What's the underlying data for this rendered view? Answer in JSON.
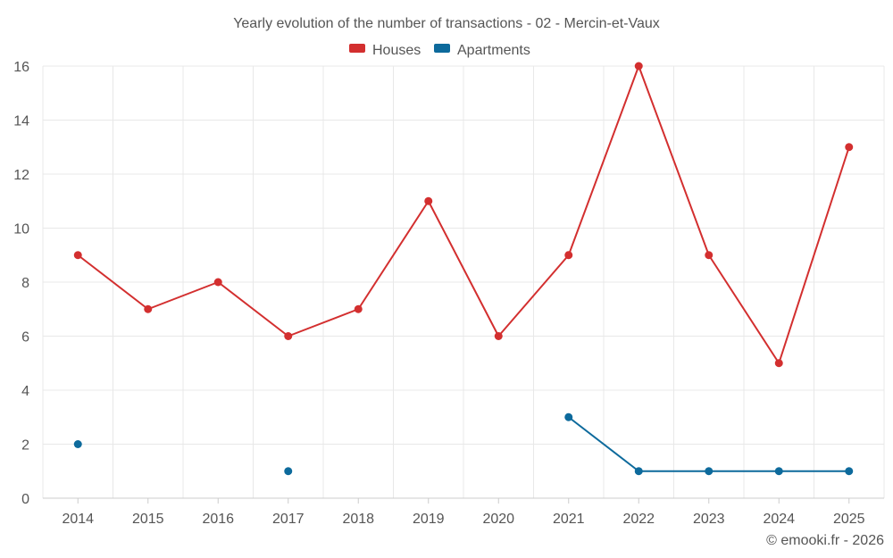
{
  "chart_data": {
    "type": "line",
    "title": "Yearly evolution of the number of transactions - 02 - Mercin-et-Vaux",
    "xlabel": "",
    "ylabel": "",
    "categories": [
      "2014",
      "2015",
      "2016",
      "2017",
      "2018",
      "2019",
      "2020",
      "2021",
      "2022",
      "2023",
      "2024",
      "2025"
    ],
    "ylim": [
      0,
      16
    ],
    "yticks": [
      0,
      2,
      4,
      6,
      8,
      10,
      12,
      14,
      16
    ],
    "grid": true,
    "legend_position": "top-center",
    "series": [
      {
        "name": "Houses",
        "color": "#d32f2f",
        "values": [
          9,
          7,
          8,
          6,
          7,
          11,
          6,
          9,
          16,
          9,
          5,
          13
        ]
      },
      {
        "name": "Apartments",
        "color": "#0d6a9c",
        "values": [
          2,
          null,
          null,
          1,
          null,
          null,
          null,
          3,
          1,
          1,
          1,
          1
        ]
      }
    ]
  },
  "credit": "© emooki.fr - 2026"
}
